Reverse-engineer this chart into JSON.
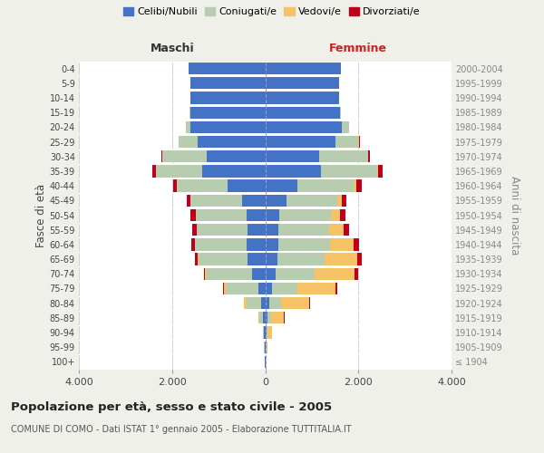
{
  "age_groups": [
    "100+",
    "95-99",
    "90-94",
    "85-89",
    "80-84",
    "75-79",
    "70-74",
    "65-69",
    "60-64",
    "55-59",
    "50-54",
    "45-49",
    "40-44",
    "35-39",
    "30-34",
    "25-29",
    "20-24",
    "15-19",
    "10-14",
    "5-9",
    "0-4"
  ],
  "birth_years": [
    "≤ 1904",
    "1905-1909",
    "1910-1914",
    "1915-1919",
    "1920-1924",
    "1925-1929",
    "1930-1934",
    "1935-1939",
    "1940-1944",
    "1945-1949",
    "1950-1954",
    "1955-1959",
    "1960-1964",
    "1965-1969",
    "1970-1974",
    "1975-1979",
    "1980-1984",
    "1985-1989",
    "1990-1994",
    "1995-1999",
    "2000-2004"
  ],
  "males": {
    "celibi": [
      5,
      10,
      20,
      40,
      80,
      150,
      280,
      380,
      400,
      380,
      390,
      500,
      800,
      1350,
      1250,
      1450,
      1600,
      1600,
      1600,
      1600,
      1650
    ],
    "coniugati": [
      2,
      10,
      25,
      80,
      320,
      700,
      980,
      1050,
      1100,
      1080,
      1100,
      1100,
      1100,
      1000,
      950,
      400,
      100,
      30,
      5,
      2,
      2
    ],
    "vedovi": [
      0,
      2,
      10,
      30,
      50,
      40,
      30,
      20,
      15,
      10,
      8,
      5,
      3,
      2,
      1,
      1,
      0,
      0,
      0,
      0,
      0
    ],
    "divorziati": [
      0,
      1,
      2,
      3,
      5,
      10,
      20,
      50,
      80,
      100,
      100,
      80,
      80,
      80,
      30,
      10,
      5,
      2,
      0,
      0,
      0
    ]
  },
  "females": {
    "nubili": [
      5,
      10,
      20,
      45,
      90,
      150,
      220,
      270,
      290,
      280,
      310,
      450,
      700,
      1200,
      1150,
      1500,
      1650,
      1600,
      1580,
      1580,
      1620
    ],
    "coniugate": [
      2,
      10,
      30,
      80,
      250,
      550,
      850,
      1000,
      1100,
      1100,
      1100,
      1100,
      1200,
      1200,
      1050,
      500,
      150,
      30,
      5,
      2,
      2
    ],
    "vedove": [
      5,
      30,
      100,
      280,
      600,
      800,
      850,
      700,
      500,
      300,
      200,
      100,
      50,
      30,
      15,
      10,
      3,
      1,
      0,
      0,
      0
    ],
    "divorziate": [
      0,
      1,
      2,
      5,
      15,
      50,
      80,
      100,
      120,
      130,
      120,
      100,
      120,
      100,
      40,
      15,
      5,
      2,
      0,
      0,
      0
    ]
  },
  "colors": {
    "celibi_nubili": "#4472C4",
    "coniugati": "#B8CCB0",
    "vedovi": "#F5C265",
    "divorziati": "#C0001A"
  },
  "title": "Popolazione per età, sesso e stato civile - 2005",
  "subtitle": "COMUNE DI COMO - Dati ISTAT 1° gennaio 2005 - Elaborazione TUTTITALIA.IT",
  "xlabel_left": "Maschi",
  "xlabel_right": "Femmine",
  "ylabel_left": "Fasce di età",
  "ylabel_right": "Anni di nascita",
  "xlim": 4000,
  "background_color": "#f0f0eb",
  "bar_background": "#ffffff"
}
